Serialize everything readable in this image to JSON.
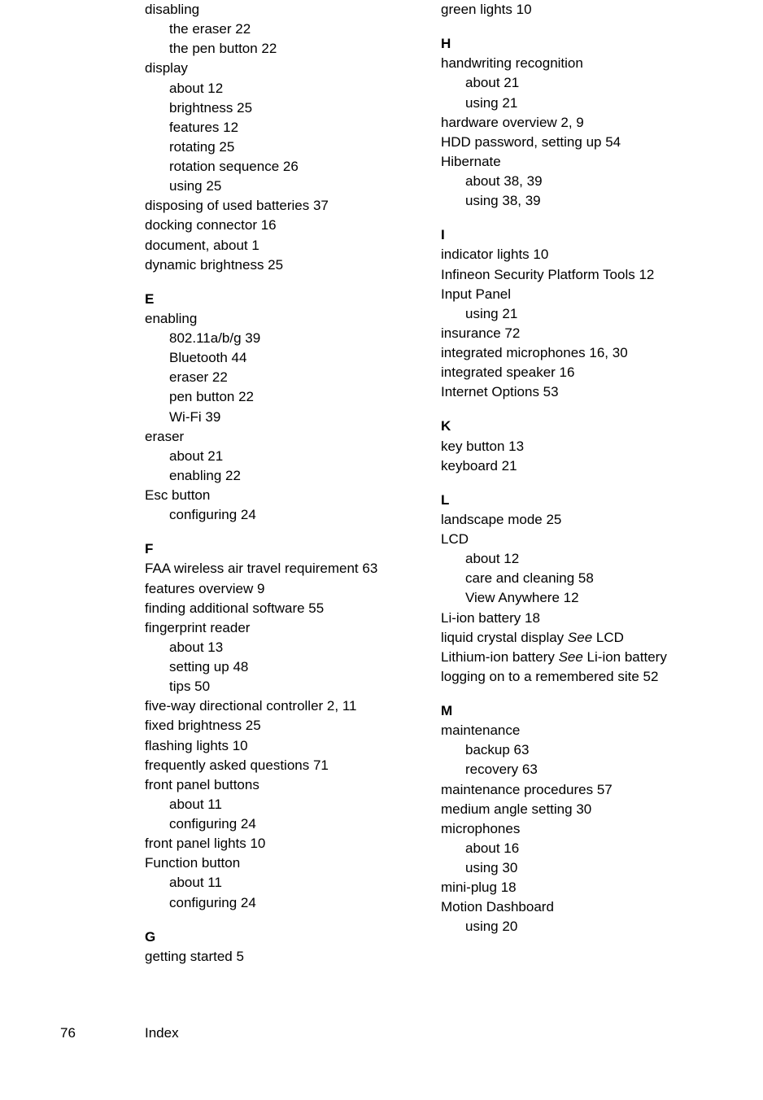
{
  "footer": {
    "page": "76",
    "section": "Index"
  },
  "left": [
    {
      "t": "l0",
      "text": "disabling"
    },
    {
      "t": "l1",
      "text": "the eraser 22"
    },
    {
      "t": "l1",
      "text": "the pen button 22"
    },
    {
      "t": "l0",
      "text": "display"
    },
    {
      "t": "l1",
      "text": "about 12"
    },
    {
      "t": "l1",
      "text": "brightness 25"
    },
    {
      "t": "l1",
      "text": "features 12"
    },
    {
      "t": "l1",
      "text": "rotating 25"
    },
    {
      "t": "l1",
      "text": "rotation sequence 26"
    },
    {
      "t": "l1",
      "text": "using 25"
    },
    {
      "t": "l0",
      "text": "disposing of used batteries 37"
    },
    {
      "t": "l0",
      "text": "docking connector 16"
    },
    {
      "t": "l0",
      "text": "document, about 1"
    },
    {
      "t": "l0",
      "text": "dynamic brightness 25"
    },
    {
      "t": "hd",
      "text": "E"
    },
    {
      "t": "l0",
      "text": "enabling"
    },
    {
      "t": "l1",
      "text": "802.11a/b/g 39"
    },
    {
      "t": "l1",
      "text": "Bluetooth 44"
    },
    {
      "t": "l1",
      "text": "eraser 22"
    },
    {
      "t": "l1",
      "text": "pen button 22"
    },
    {
      "t": "l1",
      "text": "Wi-Fi 39"
    },
    {
      "t": "l0",
      "text": "eraser"
    },
    {
      "t": "l1",
      "text": "about 21"
    },
    {
      "t": "l1",
      "text": "enabling 22"
    },
    {
      "t": "l0",
      "text": "Esc button"
    },
    {
      "t": "l1",
      "text": "configuring 24"
    },
    {
      "t": "hd",
      "text": "F"
    },
    {
      "t": "l0",
      "text": "FAA wireless air travel requirement 63"
    },
    {
      "t": "l0",
      "text": "features overview 9"
    },
    {
      "t": "l0",
      "text": "finding additional software 55"
    },
    {
      "t": "l0",
      "text": "fingerprint reader"
    },
    {
      "t": "l1",
      "text": "about 13"
    },
    {
      "t": "l1",
      "text": "setting up 48"
    },
    {
      "t": "l1",
      "text": "tips 50"
    },
    {
      "t": "l0",
      "text": "five-way directional controller 2, 11"
    },
    {
      "t": "l0",
      "text": "fixed brightness 25"
    },
    {
      "t": "l0",
      "text": "flashing lights 10"
    },
    {
      "t": "l0",
      "text": "frequently asked questions 71"
    },
    {
      "t": "l0",
      "text": "front panel buttons"
    },
    {
      "t": "l1",
      "text": "about 11"
    },
    {
      "t": "l1",
      "text": "configuring 24"
    },
    {
      "t": "l0",
      "text": "front panel lights 10"
    },
    {
      "t": "l0",
      "text": "Function button"
    },
    {
      "t": "l1",
      "text": "about 11"
    },
    {
      "t": "l1",
      "text": "configuring 24"
    },
    {
      "t": "hd",
      "text": "G"
    },
    {
      "t": "l0",
      "text": "getting started 5"
    }
  ],
  "right": [
    {
      "t": "l0",
      "text": "green lights 10"
    },
    {
      "t": "hd",
      "text": "H"
    },
    {
      "t": "l0",
      "text": "handwriting recognition"
    },
    {
      "t": "l1",
      "text": "about 21"
    },
    {
      "t": "l1",
      "text": "using 21"
    },
    {
      "t": "l0",
      "text": "hardware overview 2, 9"
    },
    {
      "t": "l0",
      "text": "HDD password, setting up 54"
    },
    {
      "t": "l0",
      "text": "Hibernate"
    },
    {
      "t": "l1",
      "text": "about 38, 39"
    },
    {
      "t": "l1",
      "text": "using 38, 39"
    },
    {
      "t": "hd",
      "text": "I"
    },
    {
      "t": "l0",
      "text": "indicator lights 10"
    },
    {
      "t": "l0",
      "text": "Infineon Security Platform Tools 12"
    },
    {
      "t": "l0",
      "text": "Input Panel"
    },
    {
      "t": "l1",
      "text": "using 21"
    },
    {
      "t": "l0",
      "text": "insurance 72"
    },
    {
      "t": "l0",
      "text": "integrated microphones 16, 30"
    },
    {
      "t": "l0",
      "text": "integrated speaker 16"
    },
    {
      "t": "l0",
      "text": "Internet Options 53"
    },
    {
      "t": "hd",
      "text": "K"
    },
    {
      "t": "l0",
      "text": "key button 13"
    },
    {
      "t": "l0",
      "text": "keyboard 21"
    },
    {
      "t": "hd",
      "text": "L"
    },
    {
      "t": "l0",
      "text": "landscape mode 25"
    },
    {
      "t": "l0",
      "text": "LCD"
    },
    {
      "t": "l1",
      "text": "about 12"
    },
    {
      "t": "l1",
      "text": "care and cleaning 58"
    },
    {
      "t": "l1",
      "text": "View Anywhere 12"
    },
    {
      "t": "l0",
      "text": "Li-ion battery 18"
    },
    {
      "t": "l0x",
      "pre": "liquid crystal display ",
      "em": "See",
      "post": " LCD"
    },
    {
      "t": "l0x",
      "pre": "Lithium-ion battery ",
      "em": "See",
      "post": " Li-ion battery"
    },
    {
      "t": "l0",
      "text": "logging on to a remembered site 52"
    },
    {
      "t": "hd",
      "text": "M"
    },
    {
      "t": "l0",
      "text": "maintenance"
    },
    {
      "t": "l1",
      "text": "backup 63"
    },
    {
      "t": "l1",
      "text": "recovery 63"
    },
    {
      "t": "l0",
      "text": "maintenance procedures 57"
    },
    {
      "t": "l0",
      "text": "medium angle setting 30"
    },
    {
      "t": "l0",
      "text": "microphones"
    },
    {
      "t": "l1",
      "text": "about 16"
    },
    {
      "t": "l1",
      "text": "using 30"
    },
    {
      "t": "l0",
      "text": "mini-plug 18"
    },
    {
      "t": "l0",
      "text": "Motion Dashboard"
    },
    {
      "t": "l1",
      "text": "using 20"
    }
  ]
}
